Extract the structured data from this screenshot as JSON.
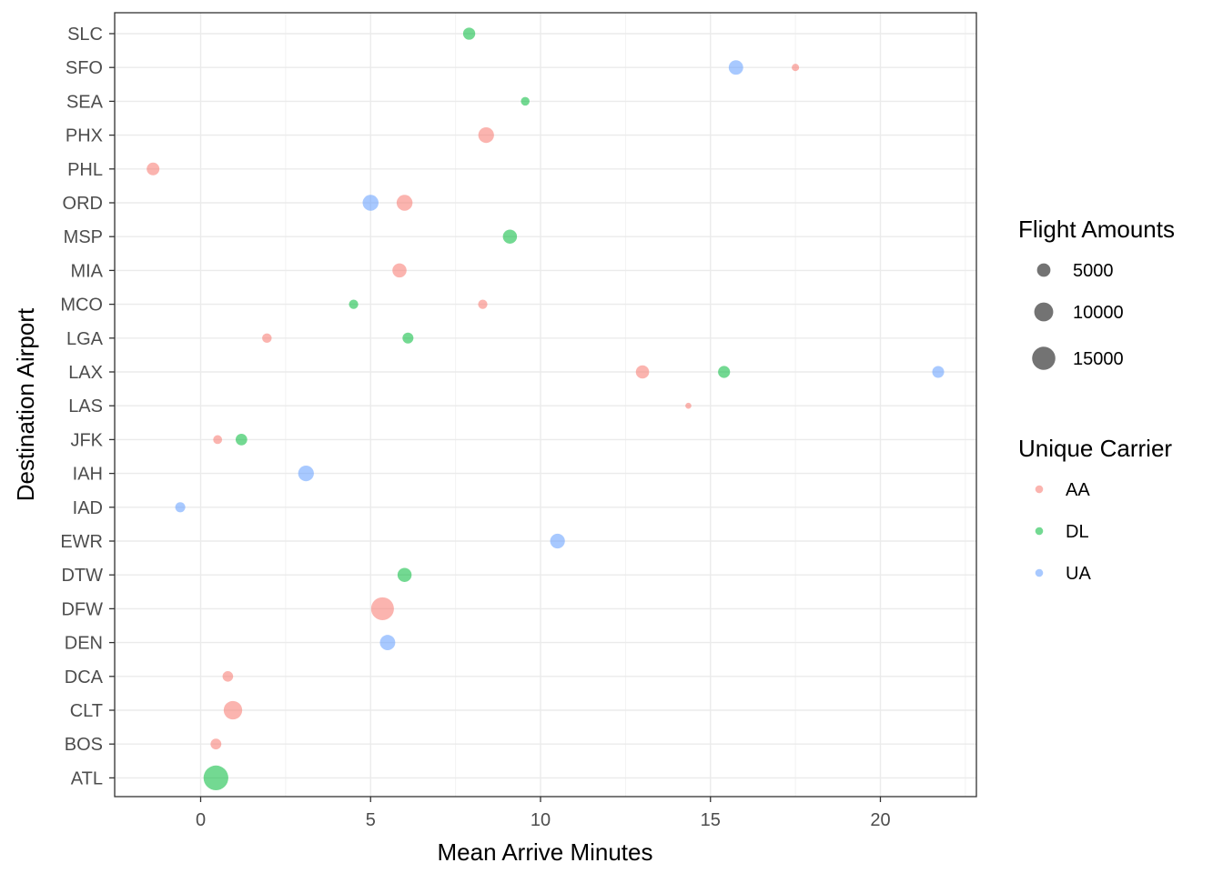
{
  "chart_data": {
    "type": "scatter",
    "xlabel": "Mean Arrive Minutes",
    "ylabel": "Destination Airport",
    "xlim": [
      -2.5,
      23
    ],
    "x_ticks": [
      0,
      5,
      10,
      15,
      20
    ],
    "x_tick_labels": [
      "0",
      "5",
      "10",
      "15",
      "20"
    ],
    "categories": [
      "ATL",
      "BOS",
      "CLT",
      "DCA",
      "DEN",
      "DFW",
      "DTW",
      "EWR",
      "IAD",
      "IAH",
      "JFK",
      "LAS",
      "LAX",
      "LGA",
      "MCO",
      "MIA",
      "MSP",
      "ORD",
      "PHL",
      "PHX",
      "SEA",
      "SFO",
      "SLC"
    ],
    "grid": true,
    "legend_position": "right",
    "size_legend": {
      "title": "Flight Amounts",
      "entries": [
        {
          "label": "5000",
          "value": 5000
        },
        {
          "label": "10000",
          "value": 10000
        },
        {
          "label": "15000",
          "value": 15000
        }
      ]
    },
    "color_legend": {
      "title": "Unique Carrier",
      "entries": [
        {
          "label": "AA",
          "color": "#F8766D"
        },
        {
          "label": "DL",
          "color": "#00BA38"
        },
        {
          "label": "UA",
          "color": "#619CFF"
        }
      ]
    },
    "series": [
      {
        "name": "AA",
        "color": "#F8766D",
        "points": [
          {
            "y": "SFO",
            "x": 17.5,
            "size": 1500
          },
          {
            "y": "PHX",
            "x": 8.4,
            "size": 6800
          },
          {
            "y": "PHL",
            "x": -1.4,
            "size": 4500
          },
          {
            "y": "ORD",
            "x": 6.0,
            "size": 7000
          },
          {
            "y": "MIA",
            "x": 5.85,
            "size": 5500
          },
          {
            "y": "MCO",
            "x": 8.3,
            "size": 2400
          },
          {
            "y": "LGA",
            "x": 1.95,
            "size": 2500
          },
          {
            "y": "LAX",
            "x": 13.0,
            "size": 4900
          },
          {
            "y": "LAS",
            "x": 14.35,
            "size": 1000
          },
          {
            "y": "JFK",
            "x": 0.5,
            "size": 2200
          },
          {
            "y": "DFW",
            "x": 5.35,
            "size": 14500
          },
          {
            "y": "DCA",
            "x": 0.8,
            "size": 3100
          },
          {
            "y": "CLT",
            "x": 0.95,
            "size": 9500
          },
          {
            "y": "BOS",
            "x": 0.45,
            "size": 3200
          }
        ]
      },
      {
        "name": "DL",
        "color": "#00BA38",
        "points": [
          {
            "y": "SLC",
            "x": 7.9,
            "size": 4100
          },
          {
            "y": "SEA",
            "x": 9.55,
            "size": 2100
          },
          {
            "y": "MSP",
            "x": 9.1,
            "size": 5500
          },
          {
            "y": "MCO",
            "x": 4.5,
            "size": 2400
          },
          {
            "y": "LGA",
            "x": 6.1,
            "size": 3300
          },
          {
            "y": "LAX",
            "x": 15.4,
            "size": 4000
          },
          {
            "y": "JFK",
            "x": 1.2,
            "size": 3700
          },
          {
            "y": "DTW",
            "x": 6.0,
            "size": 5500
          },
          {
            "y": "ATL",
            "x": 0.45,
            "size": 17000
          }
        ]
      },
      {
        "name": "UA",
        "color": "#619CFF",
        "points": [
          {
            "y": "SFO",
            "x": 15.75,
            "size": 5800
          },
          {
            "y": "ORD",
            "x": 5.0,
            "size": 7000
          },
          {
            "y": "LAX",
            "x": 21.7,
            "size": 3900
          },
          {
            "y": "IAH",
            "x": 3.1,
            "size": 6800
          },
          {
            "y": "IAD",
            "x": -0.6,
            "size": 2800
          },
          {
            "y": "EWR",
            "x": 10.5,
            "size": 6000
          },
          {
            "y": "DEN",
            "x": 5.5,
            "size": 6500
          }
        ]
      }
    ]
  }
}
